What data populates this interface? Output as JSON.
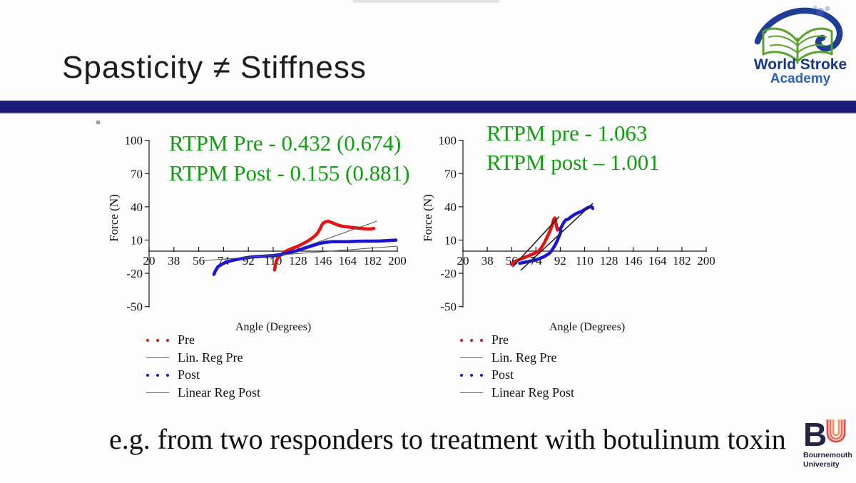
{
  "title": "Spasticity ≠ Stiffness",
  "caption": "e.g. from two responders to treatment with botulinum toxin",
  "logos": {
    "world_stroke_academy": {
      "line1": "World Stroke",
      "line2": "Academy"
    },
    "bournemouth": {
      "monogram_b": "B",
      "line1": "Bournemouth",
      "line2": "University"
    }
  },
  "colors": {
    "divider_navy": "#1b1b7a",
    "annotation_green": "#0f9f0f",
    "pre_red": "#e41313",
    "post_blue": "#1b15cf",
    "regression_gray": "#555555",
    "wsa_blue": "#1e3e94",
    "wsa_green": "#56a42c",
    "bu_navy": "#252343"
  },
  "chart_data": [
    {
      "type": "scatter",
      "annotations": [
        "RTPM Pre - 0.432 (0.674)",
        "RTPM Post - 0.155 (0.881)"
      ],
      "xlabel": "Angle (Degrees)",
      "ylabel": "Force (N)",
      "xlim": [
        20,
        200
      ],
      "ylim": [
        -50,
        100
      ],
      "xticks": [
        20,
        38,
        56,
        74,
        92,
        110,
        128,
        146,
        164,
        182,
        200
      ],
      "yticks": [
        100,
        70,
        40,
        10,
        -20,
        -50
      ],
      "grid": false,
      "legend_position": "below-left",
      "series": [
        {
          "name": "Pre",
          "swatch": "dots",
          "color": "#e41313",
          "width": 4.5,
          "points": [
            [
              111,
              -17
            ],
            [
              111.5,
              -13
            ],
            [
              112,
              -10
            ],
            [
              113,
              -7
            ],
            [
              114,
              -5
            ],
            [
              116,
              -3
            ],
            [
              118,
              -1
            ],
            [
              120,
              0.5
            ],
            [
              123,
              2
            ],
            [
              126,
              3.5
            ],
            [
              129,
              5
            ],
            [
              132,
              7
            ],
            [
              135,
              9
            ],
            [
              138,
              11.5
            ],
            [
              140,
              13.5
            ],
            [
              142,
              16
            ],
            [
              144,
              20
            ],
            [
              145,
              23
            ],
            [
              146,
              25
            ],
            [
              148,
              26.5
            ],
            [
              150,
              27
            ],
            [
              152,
              26
            ],
            [
              154,
              25
            ],
            [
              157,
              23.5
            ],
            [
              160,
              22.5
            ],
            [
              163,
              22
            ],
            [
              166,
              21.5
            ],
            [
              170,
              21
            ],
            [
              174,
              20.5
            ],
            [
              178,
              20
            ],
            [
              181,
              20
            ],
            [
              183,
              20.5
            ]
          ]
        },
        {
          "name": "Lin. Reg Pre",
          "swatch": "line",
          "color": "#555555",
          "width": 1,
          "points": [
            [
              108,
              -7
            ],
            [
              185,
              27
            ]
          ]
        },
        {
          "name": "Post",
          "swatch": "dots",
          "color": "#1b15cf",
          "width": 4.5,
          "points": [
            [
              67,
              -21
            ],
            [
              68,
              -18
            ],
            [
              69,
              -16
            ],
            [
              70,
              -14
            ],
            [
              72,
              -12.5
            ],
            [
              74,
              -11
            ],
            [
              77,
              -9.5
            ],
            [
              80,
              -8.5
            ],
            [
              84,
              -7.5
            ],
            [
              88,
              -6.5
            ],
            [
              93,
              -5.5
            ],
            [
              98,
              -5
            ],
            [
              104,
              -4.5
            ],
            [
              110,
              -4
            ],
            [
              116,
              -3
            ],
            [
              121,
              -1.5
            ],
            [
              126,
              0
            ],
            [
              131,
              2
            ],
            [
              136,
              4
            ],
            [
              140,
              5.5
            ],
            [
              144,
              7
            ],
            [
              148,
              8
            ],
            [
              153,
              8.5
            ],
            [
              158,
              8.5
            ],
            [
              164,
              8.5
            ],
            [
              170,
              8.8
            ],
            [
              176,
              9
            ],
            [
              182,
              9
            ],
            [
              188,
              9.2
            ],
            [
              194,
              9.6
            ],
            [
              199,
              10
            ]
          ]
        },
        {
          "name": "Linear Reg Post",
          "swatch": "line",
          "color": "#555555",
          "width": 1,
          "points": [
            [
              60,
              -8.5
            ],
            [
              200,
              4.5
            ]
          ]
        }
      ]
    },
    {
      "type": "scatter",
      "annotations": [
        "RTPM pre - 1.063",
        "RTPM post – 1.001"
      ],
      "xlabel": "Angle (Degrees)",
      "ylabel": "Force (N)",
      "xlim": [
        20,
        200
      ],
      "ylim": [
        -50,
        100
      ],
      "xticks": [
        20,
        38,
        56,
        74,
        92,
        110,
        128,
        146,
        164,
        182,
        200
      ],
      "yticks": [
        100,
        70,
        40,
        10,
        -20,
        -50
      ],
      "grid": false,
      "legend_position": "below-left",
      "series": [
        {
          "name": "Pre",
          "swatch": "dots",
          "color": "#e41313",
          "width": 4.5,
          "points": [
            [
              56,
              -12
            ],
            [
              57,
              -11
            ],
            [
              58,
              -10
            ],
            [
              60,
              -8.5
            ],
            [
              62,
              -7.5
            ],
            [
              64,
              -6.5
            ],
            [
              66,
              -5.5
            ],
            [
              68,
              -4.5
            ],
            [
              70,
              -3.5
            ],
            [
              72,
              -2.5
            ],
            [
              74,
              -1.5
            ],
            [
              76,
              0
            ],
            [
              77,
              1.5
            ],
            [
              78,
              3
            ],
            [
              79,
              5
            ],
            [
              80,
              7
            ],
            [
              81,
              9.5
            ],
            [
              82,
              12
            ],
            [
              83,
              14.5
            ],
            [
              84,
              17
            ],
            [
              85,
              20
            ],
            [
              86,
              23
            ],
            [
              86.5,
              25.5
            ],
            [
              87,
              28
            ],
            [
              88,
              30
            ],
            [
              88.5,
              27
            ],
            [
              89,
              24
            ],
            [
              89.5,
              21
            ],
            [
              90,
              19
            ],
            [
              91,
              20
            ]
          ]
        },
        {
          "name": "Lin. Reg Pre",
          "swatch": "line",
          "color": "#222222",
          "width": 1.6,
          "points": [
            [
              57,
              -14
            ],
            [
              91,
              31
            ]
          ]
        },
        {
          "name": "Post",
          "swatch": "dots",
          "color": "#1b15cf",
          "width": 4.5,
          "points": [
            [
              62,
              -11
            ],
            [
              64,
              -10.5
            ],
            [
              66,
              -10
            ],
            [
              68,
              -9.5
            ],
            [
              70,
              -9
            ],
            [
              72,
              -8.5
            ],
            [
              74,
              -8
            ],
            [
              76,
              -7
            ],
            [
              78,
              -6
            ],
            [
              80,
              -5
            ],
            [
              82,
              -3.5
            ],
            [
              84,
              -2
            ],
            [
              85,
              -0.5
            ],
            [
              86,
              1
            ],
            [
              87,
              3
            ],
            [
              88,
              5
            ],
            [
              89,
              7.5
            ],
            [
              90,
              10
            ],
            [
              91,
              13
            ],
            [
              92,
              16
            ],
            [
              92.5,
              18
            ],
            [
              92,
              20
            ],
            [
              93,
              22
            ],
            [
              94,
              24.5
            ],
            [
              95,
              26.5
            ],
            [
              96,
              28
            ],
            [
              97,
              28.5
            ],
            [
              98,
              29
            ],
            [
              100,
              31
            ],
            [
              102,
              32.5
            ],
            [
              104,
              34
            ],
            [
              106,
              35
            ],
            [
              108,
              36
            ],
            [
              110,
              37.5
            ],
            [
              112,
              39
            ],
            [
              114,
              40
            ],
            [
              115.5,
              40
            ],
            [
              116,
              38.5
            ]
          ]
        },
        {
          "name": "Linear Reg Post",
          "swatch": "line",
          "color": "#222222",
          "width": 1.6,
          "points": [
            [
              63,
              -17
            ],
            [
              116,
              43
            ]
          ]
        }
      ]
    }
  ]
}
